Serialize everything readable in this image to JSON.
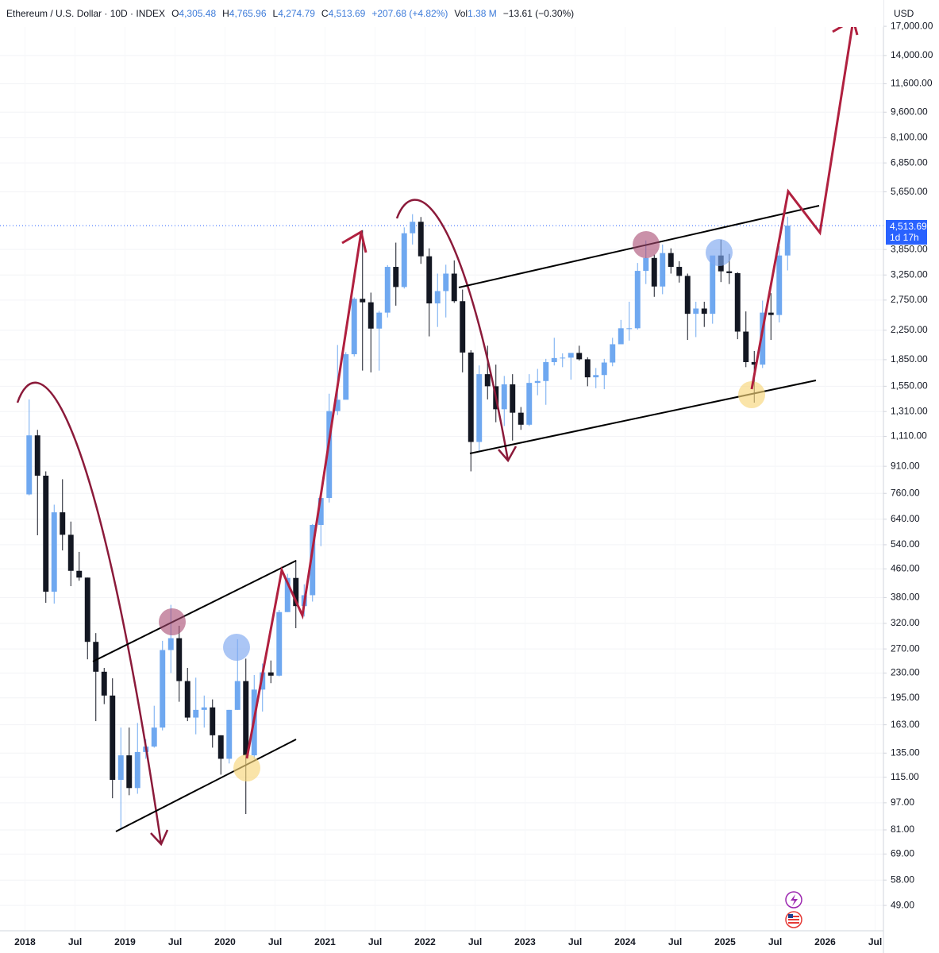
{
  "header": {
    "title": "Ethereum / U.S. Dollar · 10D · INDEX",
    "fields": [
      {
        "key": "O",
        "value": "4,305.48"
      },
      {
        "key": "H",
        "value": "4,765.96"
      },
      {
        "key": "L",
        "value": "4,274.79"
      },
      {
        "key": "C",
        "value": "4,513.69"
      }
    ],
    "change": "+207.68 (+4.82%)",
    "volume_key": "Vol",
    "volume": "1.38 M",
    "volume_change": "−13.61 (−0.30%)"
  },
  "chart_data": {
    "type": "candlestick",
    "currency": "USD",
    "log_scale": true,
    "grid": true,
    "up_color": "#6fa8f0",
    "down_color": "#131722",
    "x": [
      "2018-01",
      "2018-02",
      "2018-03",
      "2018-04",
      "2018-05",
      "2018-06",
      "2018-07",
      "2018-08",
      "2018-09",
      "2018-10",
      "2018-11",
      "2018-12",
      "2019-01",
      "2019-02",
      "2019-03",
      "2019-04",
      "2019-05",
      "2019-06",
      "2019-07",
      "2019-08",
      "2019-09",
      "2019-10",
      "2019-11",
      "2019-12",
      "2020-01",
      "2020-02",
      "2020-03",
      "2020-04",
      "2020-05",
      "2020-06",
      "2020-07",
      "2020-08",
      "2020-09",
      "2020-10",
      "2020-11",
      "2020-12",
      "2021-01",
      "2021-02",
      "2021-03",
      "2021-04",
      "2021-05",
      "2021-06",
      "2021-07",
      "2021-08",
      "2021-09",
      "2021-10",
      "2021-11",
      "2021-12",
      "2022-01",
      "2022-02",
      "2022-03",
      "2022-04",
      "2022-05",
      "2022-06",
      "2022-07",
      "2022-08",
      "2022-09",
      "2022-10",
      "2022-11",
      "2022-12",
      "2023-01",
      "2023-02",
      "2023-03",
      "2023-04",
      "2023-05",
      "2023-06",
      "2023-07",
      "2023-08",
      "2023-09",
      "2023-10",
      "2023-11",
      "2023-12",
      "2024-01",
      "2024-02",
      "2024-03",
      "2024-04",
      "2024-05",
      "2024-06",
      "2024-07",
      "2024-08",
      "2024-09",
      "2024-10",
      "2024-11",
      "2024-12",
      "2025-01",
      "2025-02",
      "2025-03",
      "2025-04",
      "2025-05",
      "2025-06",
      "2025-07",
      "2025-08"
    ],
    "open": [
      755,
      1118,
      855,
      395,
      670,
      577,
      454,
      434,
      283,
      232,
      198,
      113,
      133,
      107,
      136,
      141,
      160,
      268,
      290,
      218,
      171,
      180,
      183,
      152,
      130,
      180,
      218,
      133,
      206,
      231,
      226,
      345,
      433,
      359,
      386,
      616,
      737,
      1314,
      1417,
      1918,
      2773,
      2710,
      2275,
      2530,
      3430,
      3000,
      4290,
      4630,
      3680,
      2690,
      2920,
      3280,
      2730,
      1940,
      1070,
      1680,
      1550,
      1330,
      1570,
      1300,
      1200,
      1585,
      1605,
      1820,
      1870,
      1875,
      1935,
      1855,
      1645,
      1670,
      1815,
      2050,
      2280,
      2280,
      3340,
      3640,
      3010,
      3760,
      3430,
      3230,
      2510,
      2600,
      2510,
      3700,
      3330,
      3290,
      2230,
      1820,
      1790,
      2530,
      2490,
      3700
    ],
    "high": [
      1420,
      1160,
      880,
      705,
      835,
      630,
      515,
      434,
      300,
      238,
      222,
      160,
      160,
      165,
      148,
      185,
      285,
      362,
      315,
      238,
      223,
      198,
      193,
      152,
      180,
      288,
      253,
      227,
      245,
      250,
      350,
      445,
      488,
      415,
      620,
      755,
      1475,
      2040,
      1945,
      2800,
      4380,
      2890,
      2560,
      3470,
      4030,
      4460,
      4870,
      4780,
      3880,
      3280,
      3480,
      3580,
      2950,
      1970,
      1780,
      2030,
      1790,
      1660,
      1680,
      1350,
      1680,
      1740,
      1860,
      2140,
      1930,
      1930,
      2030,
      1880,
      1750,
      1860,
      2140,
      2410,
      2720,
      3520,
      4090,
      3720,
      3980,
      3880,
      3560,
      3280,
      2720,
      2720,
      3680,
      4110,
      3740,
      3310,
      2550,
      1960,
      2740,
      2880,
      3940,
      4790
    ],
    "low": [
      750,
      575,
      367,
      365,
      520,
      410,
      425,
      252,
      167,
      187,
      100,
      82,
      102,
      103,
      130,
      140,
      157,
      230,
      190,
      167,
      153,
      160,
      140,
      117,
      126,
      180,
      90,
      130,
      178,
      215,
      225,
      345,
      310,
      335,
      370,
      535,
      715,
      1280,
      1440,
      1890,
      1720,
      1700,
      1720,
      2450,
      2650,
      2970,
      3980,
      3500,
      2160,
      2300,
      2450,
      2700,
      1700,
      880,
      1000,
      1420,
      1220,
      1190,
      1080,
      1160,
      1190,
      1460,
      1370,
      1780,
      1760,
      1620,
      1840,
      1550,
      1530,
      1520,
      1770,
      2050,
      2100,
      2260,
      3060,
      2810,
      2860,
      3280,
      3090,
      2110,
      2150,
      2300,
      2350,
      3100,
      3060,
      2120,
      1760,
      1390,
      1750,
      2110,
      2370,
      3350
    ],
    "close": [
      1118,
      855,
      395,
      670,
      577,
      454,
      434,
      283,
      232,
      198,
      113,
      133,
      107,
      136,
      141,
      160,
      268,
      290,
      218,
      171,
      180,
      183,
      152,
      130,
      180,
      218,
      133,
      206,
      231,
      226,
      345,
      433,
      359,
      386,
      616,
      737,
      1314,
      1417,
      1918,
      2773,
      2710,
      2275,
      2530,
      3430,
      3000,
      4290,
      4630,
      3680,
      2690,
      2920,
      3280,
      2730,
      1940,
      1070,
      1680,
      1550,
      1330,
      1570,
      1300,
      1200,
      1585,
      1605,
      1820,
      1870,
      1875,
      1935,
      1855,
      1645,
      1670,
      1815,
      2050,
      2280,
      2280,
      3340,
      3640,
      3010,
      3760,
      3430,
      3230,
      2510,
      2600,
      2510,
      3700,
      3330,
      3290,
      2230,
      1820,
      1790,
      2530,
      2490,
      3700,
      4513.69
    ],
    "xlim": [
      "2017-10",
      "2026-08"
    ],
    "xticks": [
      {
        "value": "2018-01",
        "label": "2018"
      },
      {
        "value": "2018-07",
        "label": "Jul"
      },
      {
        "value": "2019-01",
        "label": "2019"
      },
      {
        "value": "2019-07",
        "label": "Jul"
      },
      {
        "value": "2020-01",
        "label": "2020"
      },
      {
        "value": "2020-07",
        "label": "Jul"
      },
      {
        "value": "2021-01",
        "label": "2021"
      },
      {
        "value": "2021-07",
        "label": "Jul"
      },
      {
        "value": "2022-01",
        "label": "2022"
      },
      {
        "value": "2022-07",
        "label": "Jul"
      },
      {
        "value": "2023-01",
        "label": "2023"
      },
      {
        "value": "2023-07",
        "label": "Jul"
      },
      {
        "value": "2024-01",
        "label": "2024"
      },
      {
        "value": "2024-07",
        "label": "Jul"
      },
      {
        "value": "2025-01",
        "label": "2025"
      },
      {
        "value": "2025-07",
        "label": "Jul"
      },
      {
        "value": "2026-01",
        "label": "2026"
      },
      {
        "value": "2026-07",
        "label": "Jul"
      }
    ],
    "ylim": [
      41.4,
      20250
    ],
    "yticks": [
      {
        "value": 49,
        "label": "49.00"
      },
      {
        "value": 58,
        "label": "58.00"
      },
      {
        "value": 69,
        "label": "69.00"
      },
      {
        "value": 81,
        "label": "81.00"
      },
      {
        "value": 97,
        "label": "97.00"
      },
      {
        "value": 115,
        "label": "115.00"
      },
      {
        "value": 135,
        "label": "135.00"
      },
      {
        "value": 163,
        "label": "163.00"
      },
      {
        "value": 195,
        "label": "195.00"
      },
      {
        "value": 230,
        "label": "230.00"
      },
      {
        "value": 270,
        "label": "270.00"
      },
      {
        "value": 320,
        "label": "320.00"
      },
      {
        "value": 380,
        "label": "380.00"
      },
      {
        "value": 460,
        "label": "460.00"
      },
      {
        "value": 540,
        "label": "540.00"
      },
      {
        "value": 640,
        "label": "640.00"
      },
      {
        "value": 760,
        "label": "760.00"
      },
      {
        "value": 910,
        "label": "910.00"
      },
      {
        "value": 1110,
        "label": "1,110.00"
      },
      {
        "value": 1310,
        "label": "1,310.00"
      },
      {
        "value": 1550,
        "label": "1,550.00"
      },
      {
        "value": 1850,
        "label": "1,850.00"
      },
      {
        "value": 2250,
        "label": "2,250.00"
      },
      {
        "value": 2750,
        "label": "2,750.00"
      },
      {
        "value": 3250,
        "label": "3,250.00"
      },
      {
        "value": 3850,
        "label": "3,850.00"
      },
      {
        "value": 5650,
        "label": "5,650.00"
      },
      {
        "value": 6850,
        "label": "6,850.00"
      },
      {
        "value": 8100,
        "label": "8,100.00"
      },
      {
        "value": 9600,
        "label": "9,600.00"
      },
      {
        "value": 11600,
        "label": "11,600.00"
      },
      {
        "value": 14000,
        "label": "14,000.00"
      },
      {
        "value": 17000,
        "label": "17,000.00"
      }
    ],
    "price_label": {
      "value": 4513.69,
      "label": "4,513.69"
    },
    "countdown": "1d 17h"
  }
}
